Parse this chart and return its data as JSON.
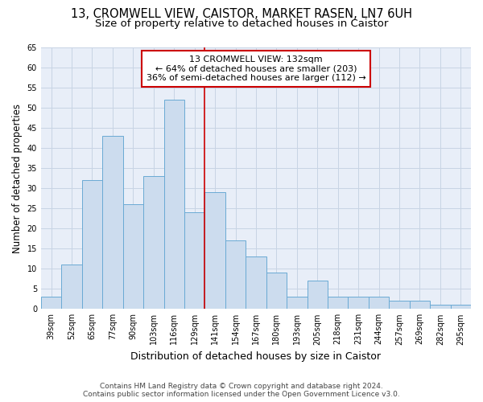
{
  "title_line1": "13, CROMWELL VIEW, CAISTOR, MARKET RASEN, LN7 6UH",
  "title_line2": "Size of property relative to detached houses in Caistor",
  "xlabel": "Distribution of detached houses by size in Caistor",
  "ylabel": "Number of detached properties",
  "categories": [
    "39sqm",
    "52sqm",
    "65sqm",
    "77sqm",
    "90sqm",
    "103sqm",
    "116sqm",
    "129sqm",
    "141sqm",
    "154sqm",
    "167sqm",
    "180sqm",
    "193sqm",
    "205sqm",
    "218sqm",
    "231sqm",
    "244sqm",
    "257sqm",
    "269sqm",
    "282sqm",
    "295sqm"
  ],
  "values": [
    3,
    11,
    32,
    43,
    26,
    33,
    52,
    24,
    29,
    17,
    13,
    9,
    3,
    7,
    3,
    3,
    3,
    2,
    2,
    1,
    1
  ],
  "bar_color": "#ccdcee",
  "bar_edge_color": "#6aaad4",
  "annotation_line0": "13 CROMWELL VIEW: 132sqm",
  "annotation_line1": "← 64% of detached houses are smaller (203)",
  "annotation_line2": "36% of semi-detached houses are larger (112) →",
  "vline_color": "#cc0000",
  "annotation_box_edge_color": "#cc0000",
  "ylim": [
    0,
    65
  ],
  "yticks": [
    0,
    5,
    10,
    15,
    20,
    25,
    30,
    35,
    40,
    45,
    50,
    55,
    60,
    65
  ],
  "grid_color": "#c8d4e4",
  "bg_color": "#e8eef8",
  "footer1": "Contains HM Land Registry data © Crown copyright and database right 2024.",
  "footer2": "Contains public sector information licensed under the Open Government Licence v3.0.",
  "vline_bar_index": 7,
  "title_fontsize": 10.5,
  "subtitle_fontsize": 9.5,
  "tick_fontsize": 7,
  "ylabel_fontsize": 8.5,
  "xlabel_fontsize": 9,
  "annotation_fontsize": 8,
  "footer_fontsize": 6.5
}
